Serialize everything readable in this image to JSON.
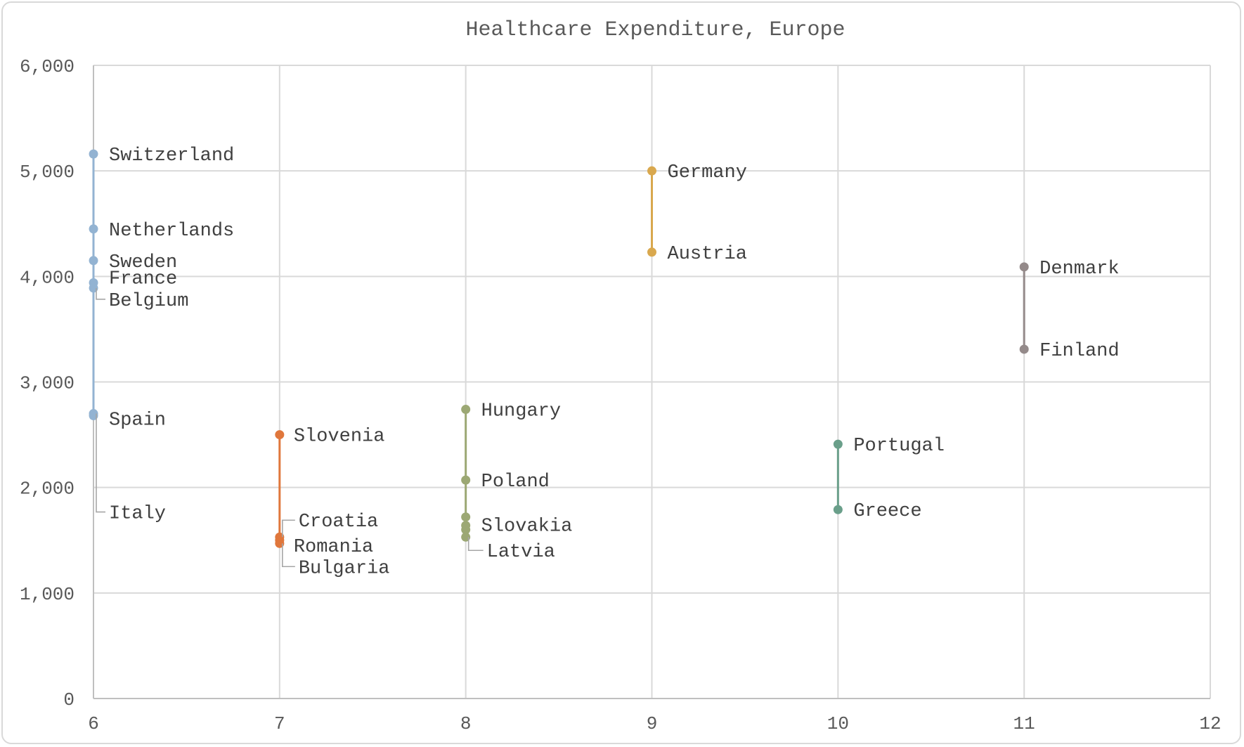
{
  "chart_data": {
    "type": "scatter",
    "title": "Healthcare Expenditure, Europe",
    "xlabel": "",
    "ylabel": "",
    "xlim": [
      6,
      12
    ],
    "ylim": [
      0,
      6000
    ],
    "x_ticks": [
      {
        "value": 6,
        "label": "6"
      },
      {
        "value": 7,
        "label": "7"
      },
      {
        "value": 8,
        "label": "8"
      },
      {
        "value": 9,
        "label": "9"
      },
      {
        "value": 10,
        "label": "10"
      },
      {
        "value": 11,
        "label": "11"
      },
      {
        "value": 12,
        "label": "12"
      }
    ],
    "y_ticks": [
      {
        "value": 0,
        "label": "0"
      },
      {
        "value": 1000,
        "label": "1,000"
      },
      {
        "value": 2000,
        "label": "2,000"
      },
      {
        "value": 3000,
        "label": "3,000"
      },
      {
        "value": 4000,
        "label": "4,000"
      },
      {
        "value": 5000,
        "label": "5,000"
      },
      {
        "value": 6000,
        "label": "6,000"
      }
    ],
    "grid": true,
    "legend": "none",
    "series": [
      {
        "color": "#93b3d2",
        "points": [
          {
            "label": "Switzerland",
            "x": 6,
            "y": 5160
          },
          {
            "label": "Netherlands",
            "x": 6,
            "y": 4450
          },
          {
            "label": "Sweden",
            "x": 6,
            "y": 4150
          },
          {
            "label": "France",
            "x": 6,
            "y": 3940
          },
          {
            "label": "Belgium",
            "x": 6,
            "y": 3890
          },
          {
            "label": "Italy",
            "x": 6,
            "y": 2700
          },
          {
            "label": "Spain",
            "x": 6,
            "y": 2680
          }
        ]
      },
      {
        "color": "#e0773c",
        "points": [
          {
            "label": "Slovenia",
            "x": 7,
            "y": 2500
          },
          {
            "label": "Croatia",
            "x": 7,
            "y": 1530
          },
          {
            "label": "Romania",
            "x": 7,
            "y": 1500
          },
          {
            "label": "Bulgaria",
            "x": 7,
            "y": 1470
          }
        ]
      },
      {
        "color": "#9ca874",
        "points": [
          {
            "label": "Hungary",
            "x": 8,
            "y": 2740
          },
          {
            "label": "Poland",
            "x": 8,
            "y": 2070
          },
          {
            "label": "Slovakia",
            "x": 8,
            "y": 1720
          },
          {
            "label": "",
            "x": 8,
            "y": 1640
          },
          {
            "label": "",
            "x": 8,
            "y": 1600
          },
          {
            "label": "Latvia",
            "x": 8,
            "y": 1530
          }
        ]
      },
      {
        "color": "#d9a84e",
        "points": [
          {
            "label": "Germany",
            "x": 9,
            "y": 5000
          },
          {
            "label": "Austria",
            "x": 9,
            "y": 4230
          }
        ]
      },
      {
        "color": "#6a9f8a",
        "points": [
          {
            "label": "Portugal",
            "x": 10,
            "y": 2410
          },
          {
            "label": "Greece",
            "x": 10,
            "y": 1790
          }
        ]
      },
      {
        "color": "#948a8a",
        "points": [
          {
            "label": "Denmark",
            "x": 11,
            "y": 4090
          },
          {
            "label": "Finland",
            "x": 11,
            "y": 3310
          }
        ]
      }
    ]
  }
}
